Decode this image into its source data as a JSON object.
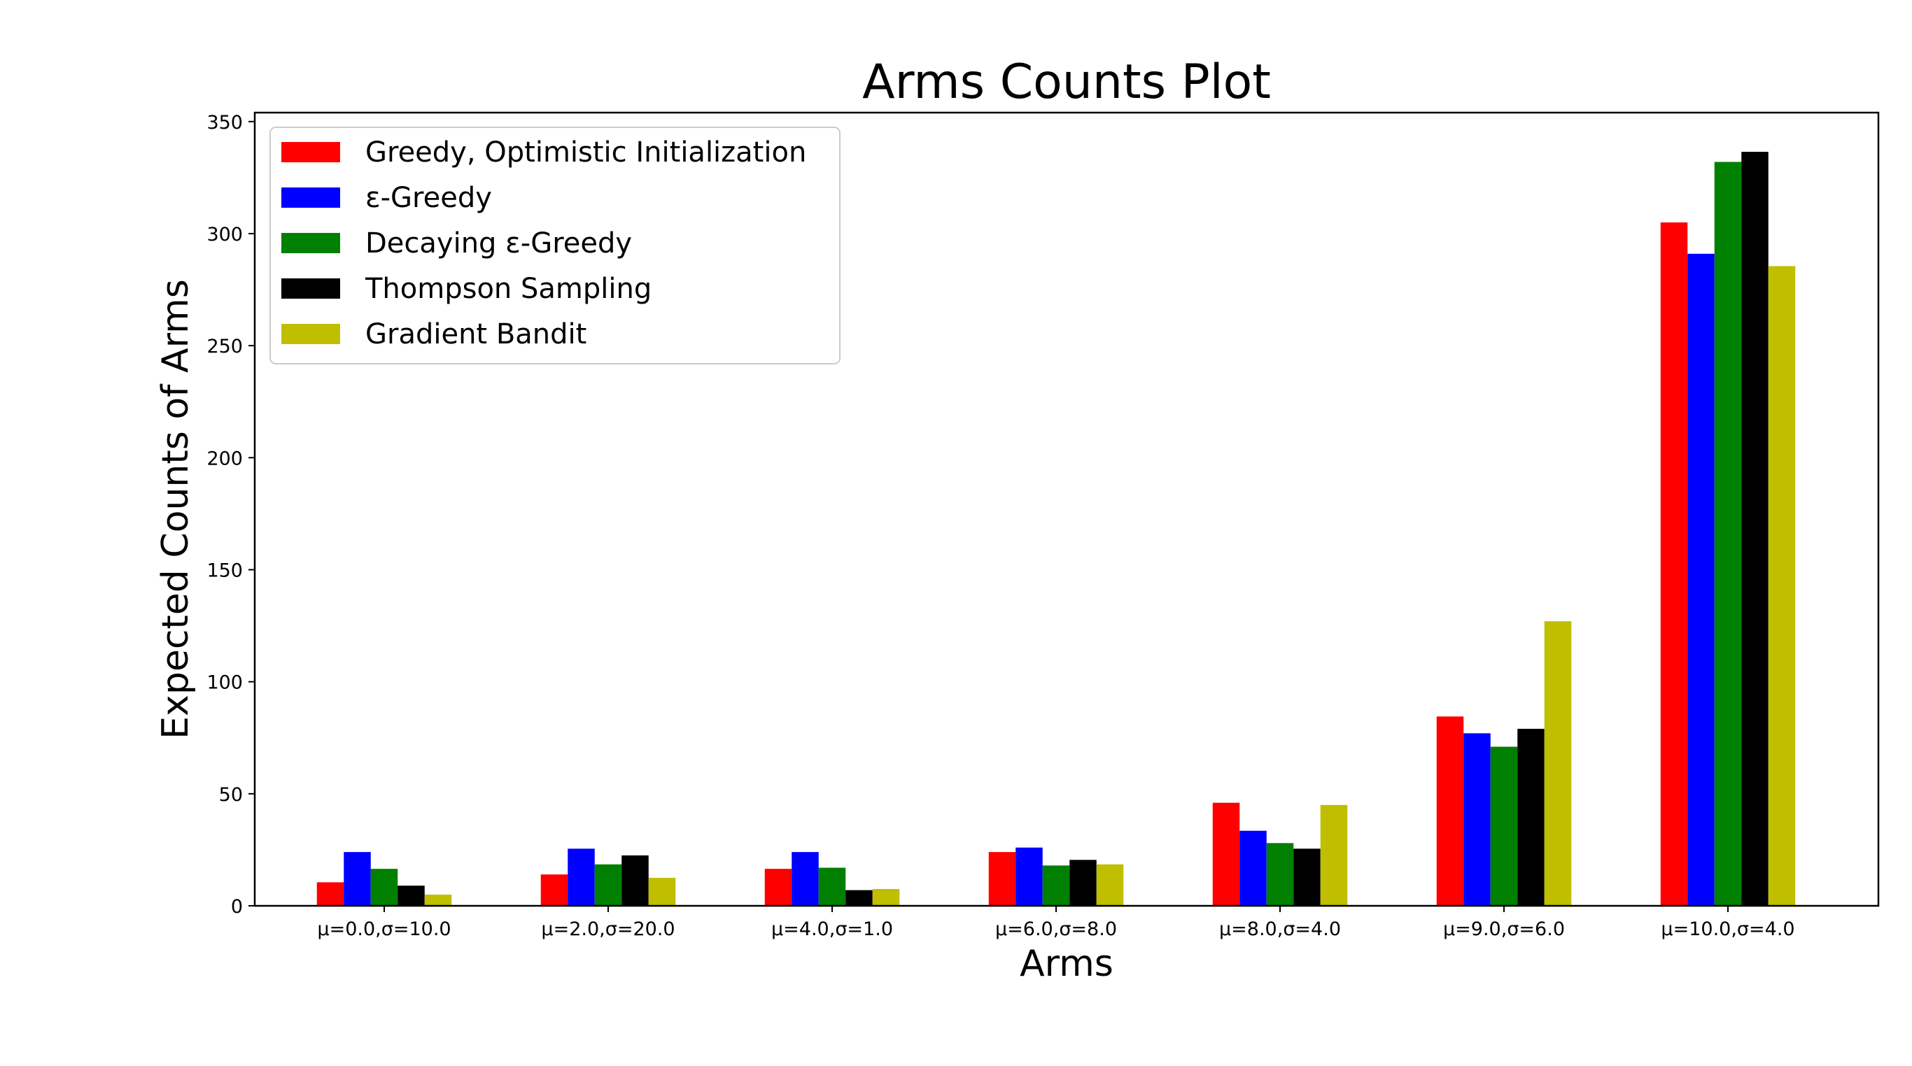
{
  "chart_data": {
    "type": "bar",
    "title": "Arms Counts Plot",
    "xlabel": "Arms",
    "ylabel": "Expected Counts of Arms",
    "ylim": [
      0,
      354
    ],
    "yticks": [
      0,
      50,
      100,
      150,
      200,
      250,
      300,
      350
    ],
    "grid": false,
    "legend_position": "top-left",
    "categories": [
      "μ=0.0,σ=10.0",
      "μ=2.0,σ=20.0",
      "μ=4.0,σ=1.0",
      "μ=6.0,σ=8.0",
      "μ=8.0,σ=4.0",
      "μ=9.0,σ=6.0",
      "μ=10.0,σ=4.0"
    ],
    "series": [
      {
        "name": "Greedy, Optimistic Initialization",
        "color": "#ff0000",
        "values": [
          10.5,
          14,
          16.5,
          24,
          46,
          84.5,
          305
        ]
      },
      {
        "name": "ε-Greedy",
        "color": "#0000ff",
        "values": [
          24,
          25.5,
          24,
          26,
          33.5,
          77,
          291
        ]
      },
      {
        "name": "Decaying ε-Greedy",
        "color": "#008000",
        "values": [
          16.5,
          18.5,
          17,
          18,
          28,
          71,
          332
        ]
      },
      {
        "name": "Thompson Sampling",
        "color": "#000000",
        "values": [
          9,
          22.5,
          7,
          20.5,
          25.5,
          79,
          336.5
        ]
      },
      {
        "name": "Gradient Bandit",
        "color": "#bfbf00",
        "values": [
          5,
          12.5,
          7.5,
          18.5,
          45,
          127,
          285.5
        ]
      }
    ]
  }
}
